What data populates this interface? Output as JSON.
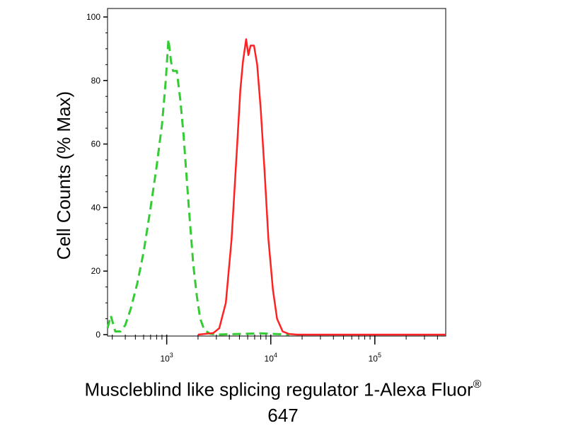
{
  "chart_data": {
    "type": "line",
    "xlabel": "Muscleblind like splicing regulator 1-Alexa Fluor",
    "xlabel_superscript": "®",
    "xlabel_line2": "647",
    "ylabel": "Cell Counts (% Max)",
    "x_scale": "log",
    "xlim": [
      270,
      480000
    ],
    "ylim": [
      0,
      100
    ],
    "yticks": [
      0,
      20,
      40,
      60,
      80,
      100
    ],
    "xticks": [
      {
        "value": 1000,
        "base": "10",
        "exp": "3"
      },
      {
        "value": 10000,
        "base": "10",
        "exp": "4"
      },
      {
        "value": 100000,
        "base": "10",
        "exp": "5"
      }
    ],
    "grid": false,
    "series": [
      {
        "color": "#33cc33",
        "style": "dashed",
        "points": [
          [
            270,
            2
          ],
          [
            290,
            6
          ],
          [
            320,
            1
          ],
          [
            360,
            1
          ],
          [
            400,
            3
          ],
          [
            450,
            8
          ],
          [
            520,
            16
          ],
          [
            600,
            26
          ],
          [
            700,
            40
          ],
          [
            800,
            53
          ],
          [
            900,
            66
          ],
          [
            980,
            80
          ],
          [
            1040,
            93
          ],
          [
            1100,
            86
          ],
          [
            1150,
            83
          ],
          [
            1250,
            83
          ],
          [
            1350,
            74
          ],
          [
            1450,
            63
          ],
          [
            1550,
            50
          ],
          [
            1650,
            38
          ],
          [
            1800,
            22
          ],
          [
            1950,
            12
          ],
          [
            2100,
            5
          ],
          [
            2300,
            1.5
          ],
          [
            2600,
            0.3
          ],
          [
            3000,
            0
          ],
          [
            6000,
            0.3
          ],
          [
            8000,
            0.4
          ],
          [
            15000,
            0
          ]
        ]
      },
      {
        "color": "#ff2222",
        "style": "solid",
        "points": [
          [
            2000,
            0
          ],
          [
            2800,
            0.5
          ],
          [
            3200,
            2
          ],
          [
            3700,
            10
          ],
          [
            4200,
            30
          ],
          [
            4700,
            57
          ],
          [
            5100,
            77
          ],
          [
            5400,
            86
          ],
          [
            5800,
            93
          ],
          [
            6100,
            88
          ],
          [
            6400,
            91
          ],
          [
            6900,
            91
          ],
          [
            7400,
            85
          ],
          [
            8000,
            71
          ],
          [
            8700,
            52
          ],
          [
            9500,
            30
          ],
          [
            10500,
            14
          ],
          [
            11500,
            5
          ],
          [
            13000,
            1
          ],
          [
            15000,
            0.2
          ],
          [
            18000,
            0
          ],
          [
            480000,
            0
          ]
        ]
      }
    ]
  }
}
